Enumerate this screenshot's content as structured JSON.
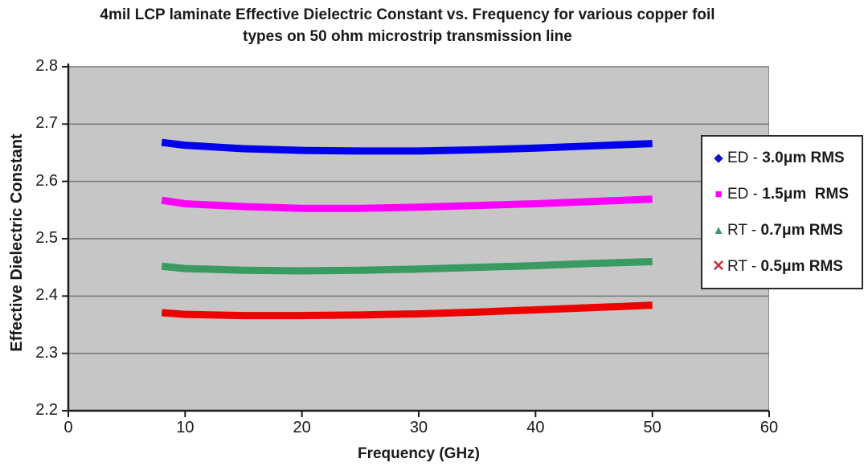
{
  "chart_data": {
    "type": "line",
    "title_line1": "4mil LCP laminate Effective Dielectric Constant vs. Frequency for various copper foil",
    "title_line2": "types on 50 ohm microstrip transmission line",
    "xlabel": "Frequency (GHz)",
    "ylabel": "Effective Dielectric Constant",
    "xlim": [
      0,
      60
    ],
    "ylim": [
      2.2,
      2.8
    ],
    "x_ticks": [
      "0",
      "10",
      "20",
      "30",
      "40",
      "50",
      "60"
    ],
    "x_tick_values": [
      0,
      10,
      20,
      30,
      40,
      50,
      60
    ],
    "y_ticks": [
      "2.2",
      "2.3",
      "2.4",
      "2.5",
      "2.6",
      "2.7",
      "2.8"
    ],
    "y_tick_values": [
      2.2,
      2.3,
      2.4,
      2.5,
      2.6,
      2.7,
      2.8
    ],
    "grid": "horizontal-on",
    "legend_position": "right-overlapping-plot",
    "colors": {
      "plot_background": "#c6c6c6",
      "gridline": "#757575",
      "axis_line": "#1a1a1a",
      "legend_border": "#2b2b2b"
    },
    "x": [
      8,
      10,
      15,
      20,
      25,
      30,
      35,
      40,
      45,
      50
    ],
    "series": [
      {
        "name": "ED - 3.0μm RMS",
        "label_prefix": "ED - ",
        "label_value": "3.0μm RMS",
        "marker": "diamond",
        "color": "#0000ee",
        "marker_color": "#0f0fcc",
        "values": [
          2.668,
          2.663,
          2.657,
          2.654,
          2.653,
          2.653,
          2.655,
          2.658,
          2.662,
          2.666
        ]
      },
      {
        "name": "ED - 1.5μm RMS",
        "label_prefix": "ED - ",
        "label_value": "1.5μm  RMS",
        "marker": "square",
        "color": "#ff00ff",
        "marker_color": "#ff00ff",
        "values": [
          2.567,
          2.561,
          2.556,
          2.553,
          2.553,
          2.555,
          2.558,
          2.561,
          2.565,
          2.569
        ]
      },
      {
        "name": "RT - 0.7μm RMS",
        "label_prefix": "RT - ",
        "label_value": "0.7μm RMS",
        "marker": "triangle",
        "color": "#399a62",
        "marker_color": "#399a62",
        "values": [
          2.452,
          2.448,
          2.445,
          2.444,
          2.445,
          2.447,
          2.45,
          2.453,
          2.457,
          2.46
        ]
      },
      {
        "name": "RT - 0.5μm RMS",
        "label_prefix": "RT - ",
        "label_value": "0.5μm RMS",
        "marker": "x",
        "color": "#ee0000",
        "marker_color": "#cc3340",
        "values": [
          2.371,
          2.368,
          2.366,
          2.366,
          2.367,
          2.369,
          2.372,
          2.376,
          2.38,
          2.384
        ]
      }
    ]
  }
}
